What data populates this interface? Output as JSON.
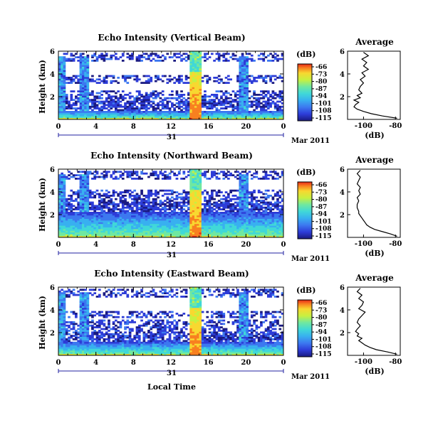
{
  "figure": {
    "xlabel": "Local Time",
    "day_label": "31",
    "date_label": "Mar 2011",
    "colorbar_unit": "(dB)",
    "profile_xlabel": "(dB)"
  },
  "chart_data": [
    {
      "type": "heatmap",
      "title": "Echo Intensity (Vertical Beam)",
      "ylabel": "Height (km)",
      "xlim": [
        0,
        24
      ],
      "ylim": [
        0,
        6
      ],
      "xticks": [
        "0",
        "4",
        "8",
        "12",
        "16",
        "20",
        "0"
      ],
      "yticks": [
        "2",
        "4",
        "6"
      ],
      "colorbar": {
        "label": "(dB)",
        "range": [
          -118,
          -66
        ],
        "ticks": [
          "-66",
          "-73",
          "-80",
          "-87",
          "-94",
          "-101",
          "-108",
          "-115"
        ]
      },
      "description_values": {
        "boundary_layer_top_km": 0.8,
        "cloud_band_heights_km": [
          1.3,
          2.2,
          3.5,
          5.5
        ],
        "strong_echo_hours": [
          13.9,
          15.3
        ],
        "rain_shafts_hours": [
          0.4,
          2.8,
          19.8
        ]
      },
      "average_profile": {
        "title": "Average",
        "xlabel": "(dB)",
        "xlim": [
          -110,
          -77
        ],
        "xticks": [
          "-100",
          "-80"
        ],
        "yticks": [
          "2",
          "4",
          "6"
        ],
        "height_km": [
          0.1,
          0.3,
          0.5,
          0.7,
          0.9,
          1.1,
          1.3,
          1.5,
          1.7,
          1.9,
          2.1,
          2.3,
          2.6,
          2.9,
          3.2,
          3.5,
          3.8,
          4.1,
          4.4,
          4.7,
          5.0,
          5.3,
          5.6,
          5.9
        ],
        "echo_db": [
          -79,
          -88,
          -95,
          -100,
          -104,
          -106,
          -105,
          -103,
          -106,
          -102,
          -104,
          -101,
          -103,
          -102,
          -100,
          -102,
          -99,
          -101,
          -97,
          -100,
          -98,
          -101,
          -97,
          -100
        ]
      }
    },
    {
      "type": "heatmap",
      "title": "Echo Intensity (Northward Beam)",
      "ylabel": "Height (km)",
      "xlim": [
        0,
        24
      ],
      "ylim": [
        0,
        6
      ],
      "xticks": [
        "0",
        "4",
        "8",
        "12",
        "16",
        "20",
        "0"
      ],
      "yticks": [
        "2",
        "4",
        "6"
      ],
      "colorbar": {
        "label": "(dB)",
        "range": [
          -118,
          -66
        ],
        "ticks": [
          "-66",
          "-73",
          "-80",
          "-87",
          "-94",
          "-101",
          "-108",
          "-115"
        ]
      },
      "description_values": {
        "boundary_layer_top_km": 2.2,
        "cloud_band_heights_km": [
          2.8,
          3.8,
          5.5
        ],
        "strong_echo_hours": [
          13.9,
          15.3
        ],
        "rain_shafts_hours": [
          0.4,
          2.8,
          19.8
        ]
      },
      "average_profile": {
        "title": "Average",
        "xlabel": "(dB)",
        "xlim": [
          -110,
          -77
        ],
        "xticks": [
          "-100",
          "-80"
        ],
        "yticks": [
          "2",
          "4",
          "6"
        ],
        "height_km": [
          0.1,
          0.3,
          0.5,
          0.7,
          0.9,
          1.1,
          1.3,
          1.5,
          1.7,
          1.9,
          2.1,
          2.3,
          2.6,
          2.9,
          3.2,
          3.5,
          3.8,
          4.1,
          4.4,
          4.7,
          5.0,
          5.3,
          5.6,
          5.9
        ],
        "echo_db": [
          -79,
          -83,
          -88,
          -93,
          -96,
          -98,
          -99,
          -100,
          -101,
          -102,
          -103,
          -103,
          -104,
          -104,
          -103,
          -104,
          -102,
          -103,
          -102,
          -104,
          -103,
          -102,
          -104,
          -102
        ]
      }
    },
    {
      "type": "heatmap",
      "title": "Echo Intensity (Eastward Beam)",
      "ylabel": "Height (km)",
      "xlim": [
        0,
        24
      ],
      "ylim": [
        0,
        6
      ],
      "xticks": [
        "0",
        "4",
        "8",
        "12",
        "16",
        "20",
        "0"
      ],
      "yticks": [
        "2",
        "4",
        "6"
      ],
      "colorbar": {
        "label": "(dB)",
        "range": [
          -118,
          -66
        ],
        "ticks": [
          "-66",
          "-73",
          "-80",
          "-87",
          "-94",
          "-101",
          "-108",
          "-115"
        ]
      },
      "description_values": {
        "boundary_layer_top_km": 1.2,
        "cloud_band_heights_km": [
          1.6,
          2.8,
          3.6,
          5.5
        ],
        "strong_echo_hours": [
          13.9,
          15.3
        ],
        "rain_shafts_hours": [
          0.4,
          2.8,
          19.8
        ]
      },
      "average_profile": {
        "title": "Average",
        "xlabel": "(dB)",
        "xlim": [
          -110,
          -77
        ],
        "xticks": [
          "-100",
          "-80"
        ],
        "yticks": [
          "2",
          "4",
          "6"
        ],
        "height_km": [
          0.1,
          0.3,
          0.5,
          0.7,
          0.9,
          1.1,
          1.3,
          1.5,
          1.7,
          1.9,
          2.1,
          2.3,
          2.6,
          2.9,
          3.2,
          3.5,
          3.8,
          4.1,
          4.4,
          4.7,
          5.0,
          5.3,
          5.6,
          5.9
        ],
        "echo_db": [
          -79,
          -85,
          -92,
          -96,
          -99,
          -101,
          -103,
          -101,
          -104,
          -103,
          -105,
          -104,
          -102,
          -104,
          -103,
          -101,
          -99,
          -103,
          -101,
          -100,
          -103,
          -101,
          -104,
          -102
        ]
      }
    }
  ],
  "colors": {
    "colormap": [
      "#1a1a80",
      "#2d3cd8",
      "#3c78f0",
      "#38b0f0",
      "#40d8d8",
      "#70e8a0",
      "#c8f040",
      "#f8d830",
      "#f88020",
      "#e82818"
    ],
    "axis_line": "#000000",
    "date_axis_line": "#2020a0"
  }
}
